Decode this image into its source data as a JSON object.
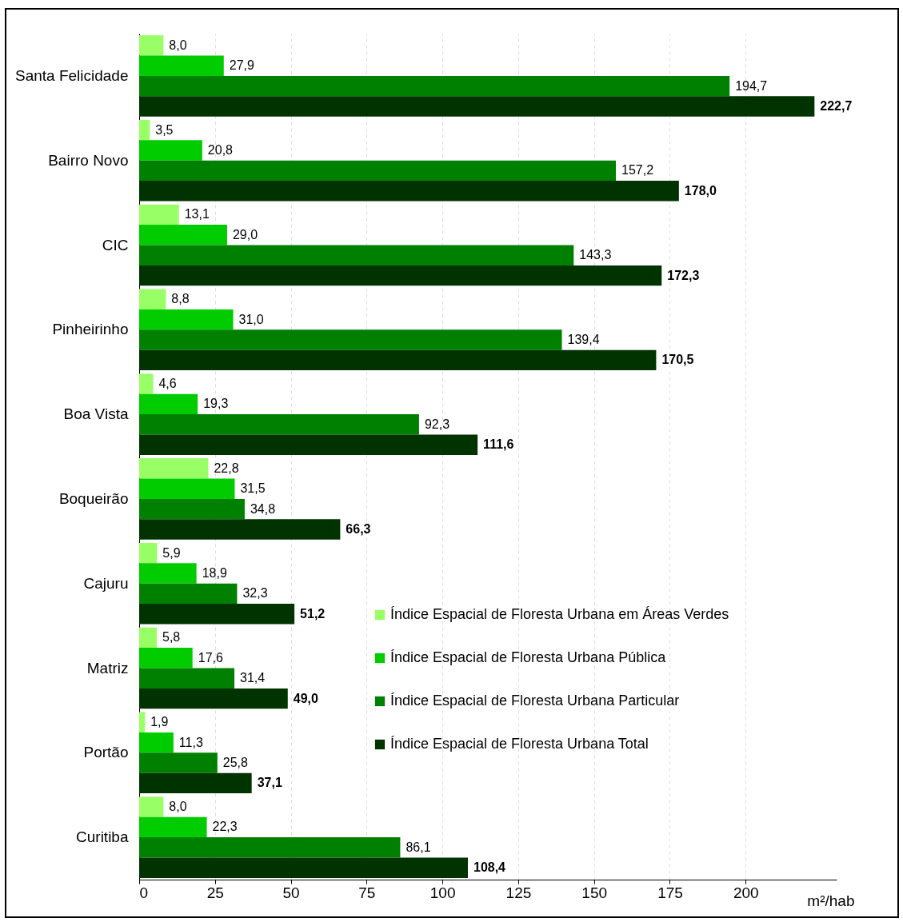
{
  "chart_data": {
    "type": "bar",
    "orientation": "horizontal",
    "xlabel": "m²/hab",
    "categories": [
      "Santa Felicidade",
      "Bairro Novo",
      "CIC",
      "Pinheirinho",
      "Boa Vista",
      "Boqueirão",
      "Cajuru",
      "Matriz",
      "Portão",
      "Curitiba"
    ],
    "series": [
      {
        "name": "Índice Espacial de Floresta Urbana em Áreas Verdes",
        "color": "#99ff66",
        "values": [
          8.0,
          3.5,
          13.1,
          8.8,
          4.6,
          22.8,
          5.9,
          5.8,
          1.9,
          8.0
        ],
        "value_labels": [
          "8,0",
          "3,5",
          "13,1",
          "8,8",
          "4,6",
          "22,8",
          "5,9",
          "5,8",
          "1,9",
          "8,0"
        ]
      },
      {
        "name": "Índice Espacial de Floresta Urbana Pública",
        "color": "#00cc00",
        "values": [
          27.9,
          20.8,
          29.0,
          31.0,
          19.3,
          31.5,
          18.9,
          17.6,
          11.3,
          22.3
        ],
        "value_labels": [
          "27,9",
          "20,8",
          "29,0",
          "31,0",
          "19,3",
          "31,5",
          "18,9",
          "17,6",
          "11,3",
          "22,3"
        ]
      },
      {
        "name": "Índice Espacial de Floresta Urbana Particular",
        "color": "#008000",
        "values": [
          194.7,
          157.2,
          143.3,
          139.4,
          92.3,
          34.8,
          32.3,
          31.4,
          25.8,
          86.1
        ],
        "value_labels": [
          "194,7",
          "157,2",
          "143,3",
          "139,4",
          "92,3",
          "34,8",
          "32,3",
          "31,4",
          "25,8",
          "86,1"
        ]
      },
      {
        "name": "Índice Espacial de Floresta Urbana Total",
        "color": "#003300",
        "values": [
          222.7,
          178.0,
          172.3,
          170.5,
          111.6,
          66.3,
          51.2,
          49.0,
          37.1,
          108.4
        ],
        "value_labels": [
          "222,7",
          "178,0",
          "172,3",
          "170,5",
          "111,6",
          "66,3",
          "51,2",
          "49,0",
          "37,1",
          "108,4"
        ]
      }
    ],
    "xlim": [
      0,
      230
    ],
    "xticks": [
      0,
      25,
      50,
      75,
      100,
      125,
      150,
      175,
      200
    ],
    "grid": "x",
    "legend": "bottom right"
  }
}
